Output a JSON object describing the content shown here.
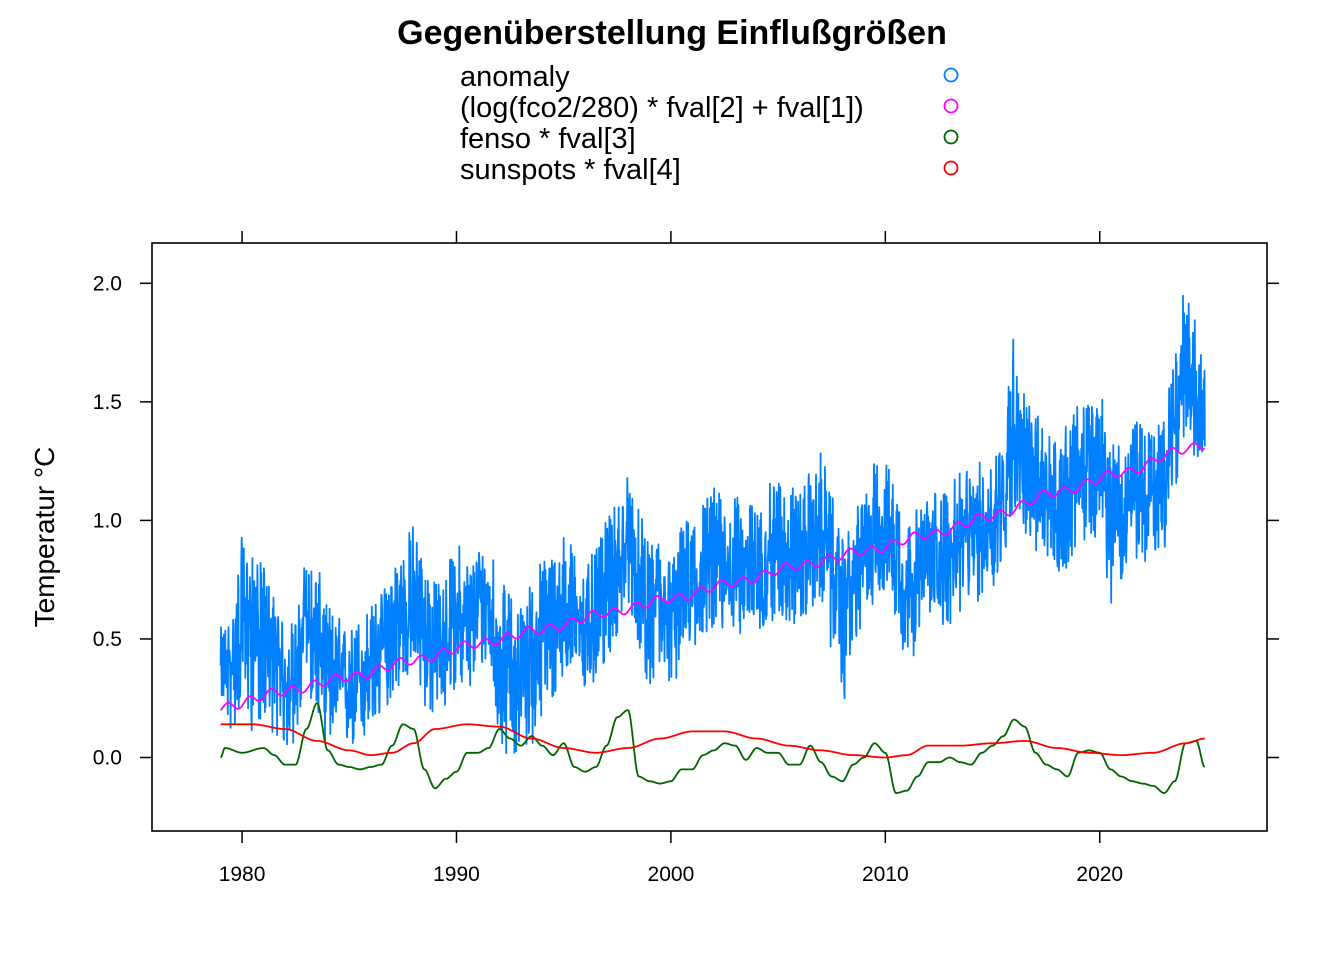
{
  "chart_data": {
    "type": "line",
    "title": "Gegenüberstellung Einflußgrößen",
    "xlabel": "",
    "ylabel": "Temperatur °C",
    "xlim": [
      1975.8,
      2027.8
    ],
    "ylim": [
      -0.31,
      2.17
    ],
    "x_ticks": [
      1980,
      1990,
      2000,
      2010,
      2020
    ],
    "x_tick_labels": [
      "1980",
      "1990",
      "2000",
      "2010",
      "2020"
    ],
    "y_ticks": [
      0.0,
      0.5,
      1.0,
      1.5,
      2.0
    ],
    "y_tick_labels": [
      "0.0",
      "0.5",
      "1.0",
      "1.5",
      "2.0"
    ],
    "legend_position": "top",
    "series": [
      {
        "name": "anomaly",
        "color": "#0080ff",
        "x": [
          1979.0,
          1979.5,
          1980.0,
          1980.5,
          1981.0,
          1981.5,
          1982.0,
          1982.5,
          1983.0,
          1983.5,
          1984.0,
          1984.5,
          1985.0,
          1985.5,
          1986.0,
          1986.5,
          1987.0,
          1987.5,
          1988.0,
          1988.5,
          1989.0,
          1989.5,
          1990.0,
          1990.5,
          1991.0,
          1991.5,
          1992.0,
          1992.5,
          1993.0,
          1993.5,
          1994.0,
          1994.5,
          1995.0,
          1995.5,
          1996.0,
          1996.5,
          1997.0,
          1997.5,
          1998.0,
          1998.5,
          1999.0,
          1999.5,
          2000.0,
          2000.5,
          2001.0,
          2001.5,
          2002.0,
          2002.5,
          2003.0,
          2003.5,
          2004.0,
          2004.5,
          2005.0,
          2005.5,
          2006.0,
          2006.5,
          2007.0,
          2007.5,
          2008.0,
          2008.5,
          2009.0,
          2009.5,
          2010.0,
          2010.5,
          2011.0,
          2011.5,
          2012.0,
          2012.5,
          2013.0,
          2013.5,
          2014.0,
          2014.5,
          2015.0,
          2015.5,
          2016.0,
          2016.5,
          2017.0,
          2017.5,
          2018.0,
          2018.5,
          2019.0,
          2019.5,
          2020.0,
          2020.5,
          2021.0,
          2021.5,
          2022.0,
          2022.5,
          2023.0,
          2023.5,
          2024.0,
          2024.5,
          2024.9
        ],
        "values": [
          0.35,
          0.4,
          0.55,
          0.6,
          0.5,
          0.42,
          0.3,
          0.35,
          0.6,
          0.5,
          0.35,
          0.3,
          0.3,
          0.35,
          0.4,
          0.45,
          0.55,
          0.6,
          0.65,
          0.55,
          0.45,
          0.5,
          0.6,
          0.55,
          0.6,
          0.65,
          0.45,
          0.4,
          0.4,
          0.45,
          0.5,
          0.55,
          0.65,
          0.6,
          0.55,
          0.6,
          0.7,
          0.8,
          0.9,
          0.75,
          0.6,
          0.65,
          0.6,
          0.7,
          0.75,
          0.8,
          0.85,
          0.8,
          0.8,
          0.82,
          0.8,
          0.85,
          0.9,
          0.88,
          0.85,
          0.9,
          0.95,
          0.8,
          0.65,
          0.75,
          0.85,
          0.95,
          1.0,
          0.9,
          0.7,
          0.75,
          0.8,
          0.85,
          0.85,
          0.9,
          0.95,
          0.95,
          1.0,
          1.1,
          1.4,
          1.25,
          1.15,
          1.1,
          1.05,
          1.1,
          1.2,
          1.2,
          1.25,
          1.1,
          1.0,
          1.15,
          1.1,
          1.1,
          1.15,
          1.4,
          1.6,
          1.5,
          1.55
        ],
        "min": [
          0.25,
          0.1,
          0.2,
          0.1,
          0.15,
          0.1,
          0.02,
          0.05,
          0.3,
          0.15,
          0.05,
          0.1,
          0.02,
          0.05,
          0.05,
          0.15,
          0.25,
          0.3,
          0.35,
          0.2,
          0.15,
          0.2,
          0.3,
          0.25,
          0.35,
          0.4,
          0.05,
          0.0,
          0.0,
          0.05,
          0.15,
          0.2,
          0.35,
          0.3,
          0.25,
          0.3,
          0.4,
          0.5,
          0.65,
          0.45,
          0.3,
          0.35,
          0.25,
          0.4,
          0.45,
          0.5,
          0.55,
          0.5,
          0.5,
          0.55,
          0.5,
          0.55,
          0.6,
          0.55,
          0.55,
          0.6,
          0.65,
          0.45,
          0.22,
          0.45,
          0.55,
          0.65,
          0.7,
          0.55,
          0.38,
          0.45,
          0.55,
          0.55,
          0.55,
          0.6,
          0.65,
          0.65,
          0.7,
          0.8,
          1.05,
          0.9,
          0.85,
          0.8,
          0.75,
          0.8,
          0.9,
          0.9,
          0.95,
          0.65,
          0.75,
          0.85,
          0.8,
          0.85,
          0.85,
          1.15,
          1.3,
          1.25,
          1.3
        ],
        "max": [
          0.55,
          0.6,
          0.93,
          0.85,
          0.82,
          0.7,
          0.55,
          0.6,
          0.85,
          0.8,
          0.65,
          0.6,
          0.55,
          0.6,
          0.65,
          0.7,
          0.85,
          0.9,
          1.0,
          0.85,
          0.75,
          0.8,
          0.92,
          0.85,
          0.9,
          0.98,
          0.75,
          0.7,
          0.65,
          0.75,
          0.85,
          0.9,
          0.95,
          0.9,
          0.8,
          0.88,
          1.0,
          1.1,
          1.2,
          1.05,
          0.9,
          0.95,
          0.85,
          0.98,
          1.05,
          1.1,
          1.15,
          1.1,
          1.1,
          1.1,
          1.05,
          1.15,
          1.2,
          1.15,
          1.15,
          1.2,
          1.3,
          1.1,
          0.92,
          1.0,
          1.15,
          1.25,
          1.25,
          1.2,
          1.0,
          1.05,
          1.1,
          1.15,
          1.15,
          1.2,
          1.25,
          1.25,
          1.3,
          1.4,
          1.8,
          1.55,
          1.45,
          1.4,
          1.35,
          1.4,
          1.5,
          1.5,
          1.55,
          1.4,
          1.3,
          1.45,
          1.4,
          1.4,
          1.45,
          1.7,
          2.0,
          1.85,
          1.9
        ]
      },
      {
        "name": "(log(fco2/280) * fval[2] + fval[1])",
        "color": "#ff00ff",
        "x": [
          1979.0,
          1982.0,
          1985.0,
          1988.0,
          1991.0,
          1994.0,
          1997.0,
          2000.0,
          2003.0,
          2006.0,
          2009.0,
          2012.0,
          2015.0,
          2018.0,
          2021.0,
          2024.0,
          2024.9
        ],
        "values": [
          0.21,
          0.28,
          0.34,
          0.41,
          0.48,
          0.54,
          0.61,
          0.67,
          0.74,
          0.81,
          0.87,
          0.94,
          1.02,
          1.12,
          1.2,
          1.3,
          1.32
        ],
        "amplitude": 0.018
      },
      {
        "name": "fenso * fval[3]",
        "color": "#006400",
        "x": [
          1979.0,
          1979.2,
          1980.0,
          1981.0,
          1981.5,
          1982.0,
          1982.5,
          1983.0,
          1983.5,
          1984.0,
          1984.5,
          1985.0,
          1985.5,
          1986.0,
          1986.5,
          1987.0,
          1987.5,
          1988.0,
          1988.5,
          1989.0,
          1989.5,
          1990.0,
          1990.5,
          1991.0,
          1991.5,
          1992.0,
          1992.5,
          1993.0,
          1993.5,
          1994.0,
          1994.5,
          1995.0,
          1995.5,
          1996.0,
          1996.5,
          1997.0,
          1997.5,
          1998.0,
          1998.5,
          1999.0,
          1999.5,
          2000.0,
          2000.5,
          2001.0,
          2001.5,
          2002.0,
          2002.5,
          2003.0,
          2003.5,
          2004.0,
          2004.5,
          2005.0,
          2005.5,
          2006.0,
          2006.5,
          2007.0,
          2007.5,
          2008.0,
          2008.5,
          2009.0,
          2009.5,
          2010.0,
          2010.5,
          2011.0,
          2011.5,
          2012.0,
          2012.5,
          2013.0,
          2013.5,
          2014.0,
          2014.5,
          2015.0,
          2015.5,
          2016.0,
          2016.5,
          2017.0,
          2017.5,
          2018.0,
          2018.5,
          2019.0,
          2019.5,
          2020.0,
          2020.5,
          2021.0,
          2021.5,
          2022.0,
          2022.5,
          2023.0,
          2023.5,
          2024.0,
          2024.5,
          2024.9
        ],
        "values": [
          0.0,
          0.04,
          0.02,
          0.04,
          0.01,
          -0.03,
          -0.03,
          0.12,
          0.23,
          0.03,
          -0.03,
          -0.04,
          -0.05,
          -0.04,
          -0.03,
          0.05,
          0.14,
          0.12,
          -0.05,
          -0.13,
          -0.09,
          -0.06,
          0.02,
          0.02,
          0.04,
          0.12,
          0.08,
          0.05,
          0.09,
          0.05,
          0.01,
          0.06,
          -0.04,
          -0.06,
          -0.04,
          0.05,
          0.17,
          0.2,
          -0.08,
          -0.1,
          -0.11,
          -0.1,
          -0.05,
          -0.05,
          0.01,
          0.03,
          0.06,
          0.05,
          -0.01,
          0.04,
          0.02,
          0.02,
          -0.03,
          -0.03,
          0.05,
          -0.02,
          -0.08,
          -0.1,
          -0.03,
          0.0,
          0.06,
          0.02,
          -0.15,
          -0.14,
          -0.08,
          -0.02,
          -0.02,
          0.0,
          -0.02,
          -0.03,
          0.02,
          0.05,
          0.09,
          0.16,
          0.13,
          0.02,
          -0.03,
          -0.05,
          -0.08,
          0.02,
          0.03,
          0.02,
          -0.05,
          -0.08,
          -0.1,
          -0.11,
          -0.12,
          -0.15,
          -0.1,
          0.06,
          0.07,
          -0.04
        ]
      },
      {
        "name": "sunspots * fval[4]",
        "color": "#ff0000",
        "x": [
          1979.0,
          1980.5,
          1982.0,
          1983.5,
          1985.0,
          1986.0,
          1987.0,
          1988.0,
          1989.0,
          1990.5,
          1992.0,
          1993.5,
          1995.0,
          1996.5,
          1998.0,
          1999.5,
          2001.0,
          2002.5,
          2004.0,
          2005.5,
          2007.0,
          2008.5,
          2010.0,
          2011.0,
          2012.0,
          2013.5,
          2015.0,
          2016.5,
          2018.0,
          2019.5,
          2021.0,
          2022.5,
          2024.0,
          2024.9
        ],
        "values": [
          0.14,
          0.14,
          0.12,
          0.07,
          0.03,
          0.01,
          0.02,
          0.06,
          0.12,
          0.14,
          0.13,
          0.08,
          0.04,
          0.02,
          0.04,
          0.08,
          0.11,
          0.11,
          0.08,
          0.05,
          0.03,
          0.01,
          0.0,
          0.01,
          0.05,
          0.05,
          0.06,
          0.07,
          0.04,
          0.02,
          0.01,
          0.02,
          0.06,
          0.08
        ]
      }
    ]
  }
}
